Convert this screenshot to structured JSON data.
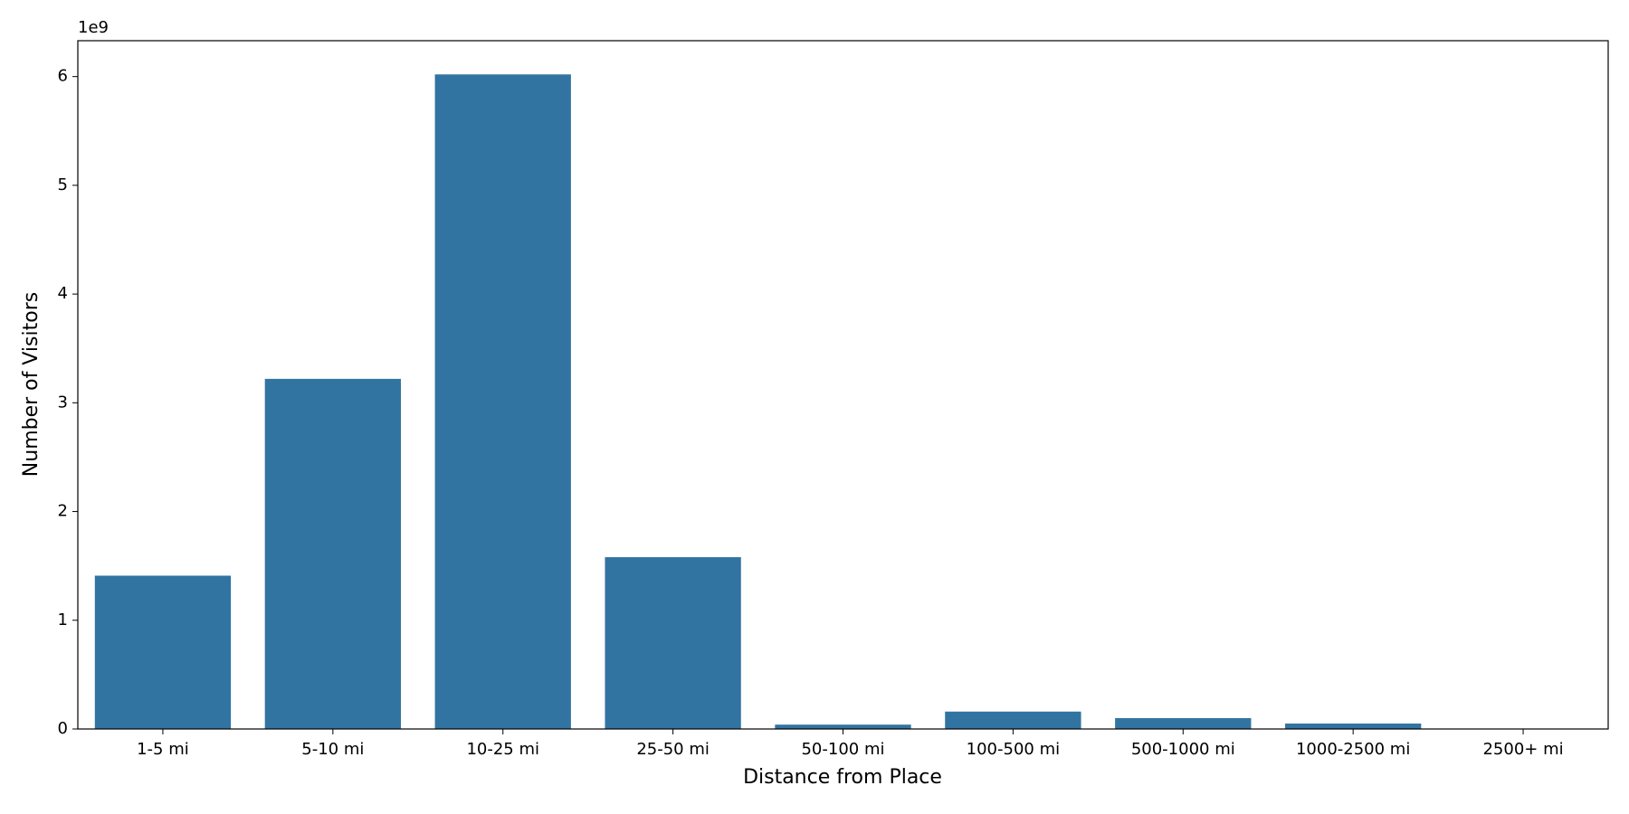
{
  "chart_data": {
    "type": "bar",
    "x_label": "Distance from Place",
    "y_label": "Number of Visitors",
    "y_offset_label": "1e9",
    "categories": [
      "1-5 mi",
      "5-10 mi",
      "10-25 mi",
      "25-50 mi",
      "50-100 mi",
      "100-500 mi",
      "500-1000 mi",
      "1000-2500 mi",
      "2500+ mi"
    ],
    "values": [
      1.41,
      3.22,
      6.02,
      1.58,
      0.04,
      0.16,
      0.1,
      0.05,
      0
    ],
    "color": "#3274a1",
    "ylim": [
      0,
      6.33
    ],
    "yticks": [
      0,
      1,
      2,
      3,
      4,
      5,
      6
    ],
    "grid": false
  }
}
